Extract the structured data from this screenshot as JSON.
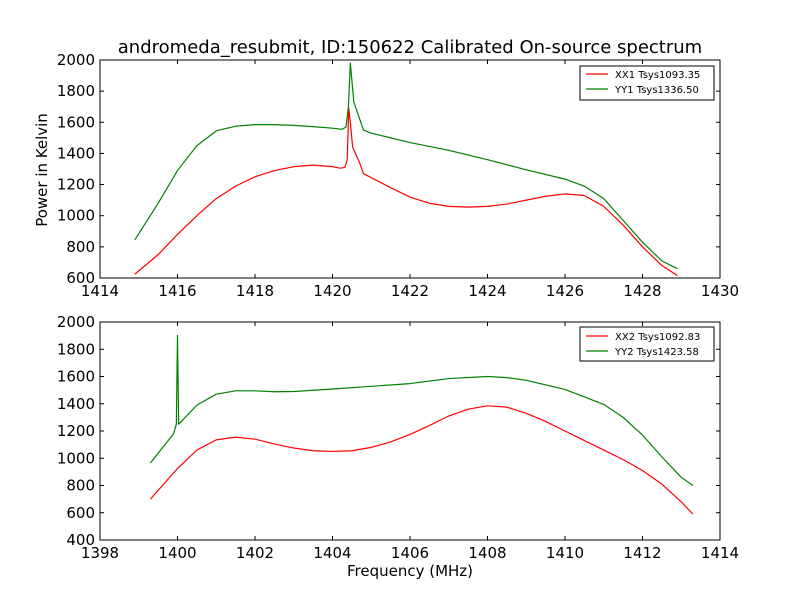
{
  "chart_data": [
    {
      "type": "line",
      "title": "andromeda_resubmit, ID:150622 Calibrated On-source spectrum",
      "xlabel": "",
      "ylabel": "Power in Kelvin",
      "xlim": [
        1414,
        1430
      ],
      "ylim": [
        600,
        2000
      ],
      "xticks": [
        1414,
        1416,
        1418,
        1420,
        1422,
        1424,
        1426,
        1428,
        1430
      ],
      "yticks": [
        600,
        800,
        1000,
        1200,
        1400,
        1600,
        1800,
        2000
      ],
      "grid": false,
      "legend": "top-right",
      "series": [
        {
          "name": "XX1 Tsys1093.35",
          "color": "#ff0000",
          "x": [
            1414.9,
            1415.5,
            1416.0,
            1416.5,
            1417.0,
            1417.5,
            1418.0,
            1418.5,
            1419.0,
            1419.5,
            1420.0,
            1420.2,
            1420.32,
            1420.38,
            1420.42,
            1420.46,
            1420.52,
            1420.7,
            1420.8,
            1421.5,
            1422.0,
            1422.5,
            1423.0,
            1423.5,
            1424.0,
            1424.5,
            1425.0,
            1425.5,
            1426.0,
            1426.5,
            1427.0,
            1427.5,
            1428.0,
            1428.5,
            1428.9
          ],
          "y": [
            625,
            750,
            880,
            1000,
            1110,
            1190,
            1250,
            1290,
            1315,
            1325,
            1315,
            1305,
            1310,
            1360,
            1690,
            1600,
            1440,
            1340,
            1270,
            1180,
            1120,
            1080,
            1060,
            1055,
            1060,
            1075,
            1100,
            1125,
            1140,
            1130,
            1060,
            940,
            800,
            680,
            615
          ]
        },
        {
          "name": "YY1 Tsys1336.50",
          "color": "#008000",
          "x": [
            1414.9,
            1415.5,
            1416.0,
            1416.5,
            1417.0,
            1417.5,
            1418.0,
            1418.5,
            1419.0,
            1419.5,
            1420.0,
            1420.25,
            1420.35,
            1420.41,
            1420.46,
            1420.55,
            1420.8,
            1421.0,
            1422.0,
            1423.0,
            1424.0,
            1425.0,
            1426.0,
            1426.5,
            1427.0,
            1427.5,
            1428.0,
            1428.5,
            1428.9
          ],
          "y": [
            845,
            1080,
            1290,
            1450,
            1545,
            1575,
            1585,
            1585,
            1580,
            1572,
            1562,
            1555,
            1570,
            1700,
            1980,
            1730,
            1550,
            1530,
            1470,
            1420,
            1360,
            1295,
            1235,
            1190,
            1110,
            970,
            830,
            710,
            660
          ]
        }
      ]
    },
    {
      "type": "line",
      "title": "",
      "xlabel": "Frequency (MHz)",
      "ylabel": "",
      "xlim": [
        1398,
        1414
      ],
      "ylim": [
        400,
        2000
      ],
      "xticks": [
        1398,
        1400,
        1402,
        1404,
        1406,
        1408,
        1410,
        1412,
        1414
      ],
      "yticks": [
        400,
        600,
        800,
        1000,
        1200,
        1400,
        1600,
        1800,
        2000
      ],
      "grid": false,
      "legend": "top-right",
      "series": [
        {
          "name": "XX2 Tsys1092.83",
          "color": "#ff0000",
          "x": [
            1399.3,
            1400.0,
            1400.5,
            1401.0,
            1401.5,
            1402.0,
            1402.5,
            1403.0,
            1403.5,
            1404.0,
            1404.5,
            1405.0,
            1405.5,
            1406.0,
            1406.5,
            1407.0,
            1407.5,
            1408.0,
            1408.5,
            1409.0,
            1409.5,
            1410.0,
            1410.5,
            1411.0,
            1411.5,
            1412.0,
            1412.5,
            1413.0,
            1413.3
          ],
          "y": [
            700,
            925,
            1060,
            1135,
            1155,
            1140,
            1105,
            1075,
            1055,
            1050,
            1055,
            1080,
            1120,
            1175,
            1240,
            1310,
            1360,
            1385,
            1375,
            1330,
            1270,
            1200,
            1130,
            1060,
            990,
            910,
            810,
            680,
            590
          ]
        },
        {
          "name": "YY2 Tsys1423.58",
          "color": "#008000",
          "x": [
            1399.3,
            1399.9,
            1399.97,
            1400.0,
            1400.03,
            1400.1,
            1400.5,
            1401.0,
            1401.5,
            1402.0,
            1402.5,
            1403.0,
            1404.0,
            1405.0,
            1406.0,
            1407.0,
            1408.0,
            1408.5,
            1409.0,
            1410.0,
            1410.5,
            1411.0,
            1411.5,
            1412.0,
            1412.5,
            1413.0,
            1413.3
          ],
          "y": [
            965,
            1180,
            1250,
            1900,
            1250,
            1270,
            1390,
            1470,
            1495,
            1495,
            1488,
            1490,
            1508,
            1528,
            1548,
            1585,
            1600,
            1592,
            1572,
            1505,
            1450,
            1395,
            1300,
            1170,
            1010,
            860,
            800
          ]
        }
      ]
    }
  ]
}
